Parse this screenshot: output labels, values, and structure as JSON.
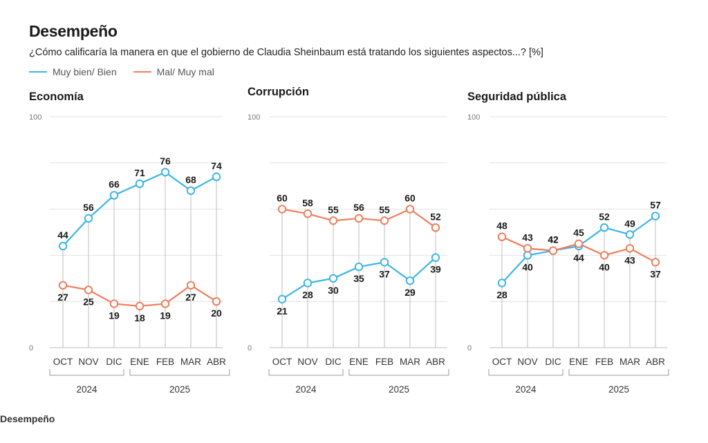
{
  "header": {
    "title": "Desempeño",
    "subtitle": "¿Cómo calificaría la manera en que el gobierno de Claudia Sheinbaum está tratando los siguientes aspectos...? [%]"
  },
  "legend": [
    {
      "label": "Muy bien/ Bien",
      "color": "#3cb4e6"
    },
    {
      "label": "Mal/ Muy mal",
      "color": "#ef7d5c"
    }
  ],
  "footer": {
    "text": "Desempeño"
  },
  "chart_data": [
    {
      "type": "line",
      "title": "Economía",
      "categories": [
        "OCT",
        "NOV",
        "DIC",
        "ENE",
        "FEB",
        "MAR",
        "ABR"
      ],
      "year_groups": [
        {
          "label": "2024",
          "span": [
            0,
            2
          ]
        },
        {
          "label": "2025",
          "span": [
            3,
            6
          ]
        }
      ],
      "ylim": [
        0,
        100
      ],
      "yticks_labeled": [
        0,
        100
      ],
      "series": [
        {
          "name": "Muy bien/ Bien",
          "values": [
            44,
            56,
            66,
            71,
            76,
            68,
            74
          ]
        },
        {
          "name": "Mal/ Muy mal",
          "values": [
            27,
            25,
            19,
            18,
            19,
            27,
            20
          ]
        }
      ]
    },
    {
      "type": "line",
      "title": "Corrupción",
      "categories": [
        "OCT",
        "NOV",
        "DIC",
        "ENE",
        "FEB",
        "MAR",
        "ABR"
      ],
      "year_groups": [
        {
          "label": "2024",
          "span": [
            0,
            2
          ]
        },
        {
          "label": "2025",
          "span": [
            3,
            6
          ]
        }
      ],
      "ylim": [
        0,
        100
      ],
      "yticks_labeled": [
        0,
        100
      ],
      "series": [
        {
          "name": "Muy bien/ Bien",
          "values": [
            21,
            28,
            30,
            35,
            37,
            29,
            39
          ]
        },
        {
          "name": "Mal/ Muy mal",
          "values": [
            60,
            58,
            55,
            56,
            55,
            60,
            52
          ]
        }
      ]
    },
    {
      "type": "line",
      "title": "Seguridad pública",
      "categories": [
        "OCT",
        "NOV",
        "DIC",
        "ENE",
        "FEB",
        "MAR",
        "ABR"
      ],
      "year_groups": [
        {
          "label": "2024",
          "span": [
            0,
            2
          ]
        },
        {
          "label": "2025",
          "span": [
            3,
            6
          ]
        }
      ],
      "ylim": [
        0,
        100
      ],
      "yticks_labeled": [
        0,
        100
      ],
      "series": [
        {
          "name": "Muy bien/ Bien",
          "values": [
            28,
            40,
            42,
            44,
            52,
            49,
            57
          ]
        },
        {
          "name": "Mal/ Muy mal",
          "values": [
            48,
            43,
            42,
            45,
            40,
            43,
            37
          ]
        }
      ]
    }
  ]
}
